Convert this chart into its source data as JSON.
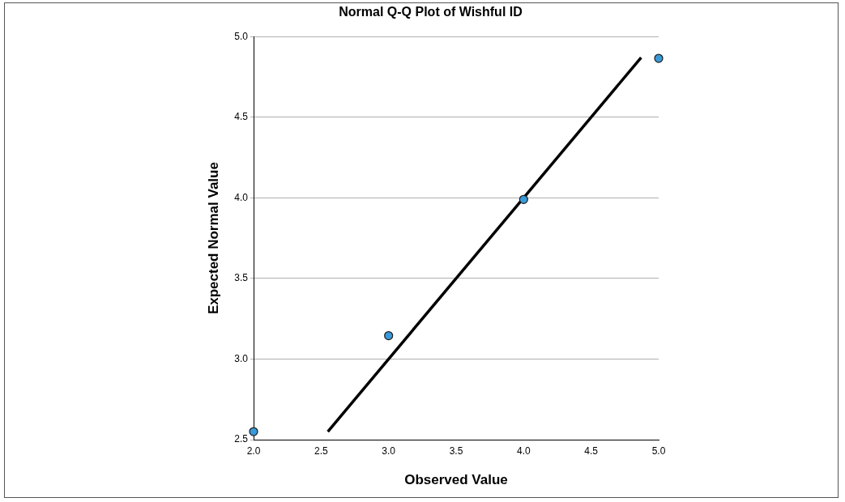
{
  "chart_data": {
    "type": "scatter",
    "title": "Normal Q-Q Plot of Wishful ID",
    "xlabel": "Observed Value",
    "ylabel": "Expected Normal Value",
    "xlim": [
      2,
      5
    ],
    "ylim": [
      2.5,
      5
    ],
    "xticks": [
      {
        "value": 2,
        "label": "2.0"
      },
      {
        "value": 2.5,
        "label": "2.5"
      },
      {
        "value": 3,
        "label": "3.0"
      },
      {
        "value": 3.5,
        "label": "3.5"
      },
      {
        "value": 4,
        "label": "4.0"
      },
      {
        "value": 4.5,
        "label": "4.5"
      },
      {
        "value": 5,
        "label": "5.0"
      }
    ],
    "yticks": [
      {
        "value": 2.5,
        "label": "2.5"
      },
      {
        "value": 3,
        "label": "3.0"
      },
      {
        "value": 3.5,
        "label": "3.5"
      },
      {
        "value": 4,
        "label": "4.0"
      },
      {
        "value": 4.5,
        "label": "4.5"
      },
      {
        "value": 5,
        "label": "5.0"
      }
    ],
    "grid": "y",
    "marker": "circle",
    "series": [
      {
        "x": [
          2,
          3,
          4,
          5
        ],
        "values": [
          2.55,
          3.145,
          3.99,
          4.865
        ],
        "color": "#3a9ad9"
      },
      {
        "type": "line",
        "x": [
          2.55,
          4.87
        ],
        "values": [
          2.55,
          4.87
        ],
        "color": "#000000",
        "marker": "none"
      }
    ]
  }
}
